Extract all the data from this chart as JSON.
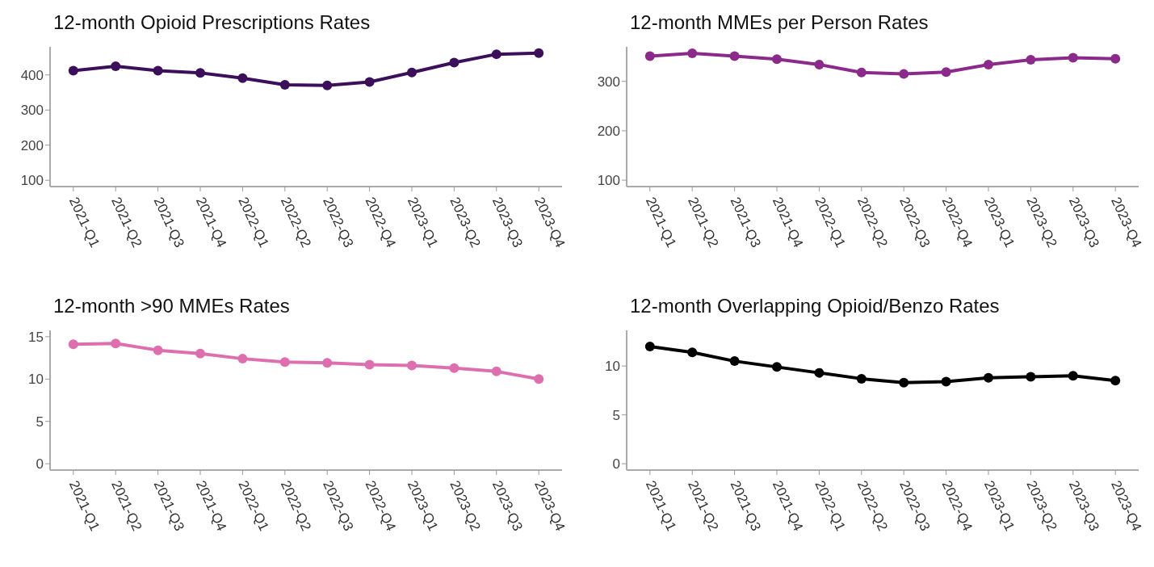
{
  "chart_data": [
    {
      "type": "line",
      "title": "12-month Opioid Prescriptions Rates",
      "categories": [
        "2021-Q1",
        "2021-Q2",
        "2021-Q3",
        "2021-Q4",
        "2022-Q1",
        "2022-Q2",
        "2022-Q3",
        "2022-Q4",
        "2023-Q1",
        "2023-Q2",
        "2023-Q3",
        "2023-Q4"
      ],
      "values": [
        412,
        425,
        412,
        406,
        391,
        372,
        370,
        380,
        407,
        435,
        459,
        462
      ],
      "color": "#3b0f5a",
      "ylim": [
        82,
        480
      ],
      "yticks": [
        100,
        200,
        300,
        400
      ],
      "marker": "circle",
      "grid": false
    },
    {
      "type": "line",
      "title": "12-month MMEs per Person Rates",
      "categories": [
        "2021-Q1",
        "2021-Q2",
        "2021-Q3",
        "2021-Q4",
        "2022-Q1",
        "2022-Q2",
        "2022-Q3",
        "2022-Q4",
        "2023-Q1",
        "2023-Q2",
        "2023-Q3",
        "2023-Q4"
      ],
      "values": [
        351,
        357,
        351,
        345,
        334,
        318,
        315,
        319,
        334,
        344,
        348,
        346
      ],
      "color": "#8c2a8c",
      "ylim": [
        87,
        370
      ],
      "yticks": [
        100,
        200,
        300
      ],
      "marker": "circle",
      "grid": false
    },
    {
      "type": "line",
      "title": "12-month >90 MMEs Rates",
      "categories": [
        "2021-Q1",
        "2021-Q2",
        "2021-Q3",
        "2021-Q4",
        "2022-Q1",
        "2022-Q2",
        "2022-Q3",
        "2022-Q4",
        "2023-Q1",
        "2023-Q2",
        "2023-Q3",
        "2023-Q4"
      ],
      "values": [
        14.1,
        14.2,
        13.4,
        13.0,
        12.4,
        12.0,
        11.9,
        11.7,
        11.6,
        11.3,
        10.9,
        10.0
      ],
      "color": "#de6fae",
      "ylim": [
        -0.75,
        15.75
      ],
      "yticks": [
        0,
        5,
        10,
        15
      ],
      "marker": "circle",
      "grid": false
    },
    {
      "type": "line",
      "title": "12-month Overlapping Opioid/Benzo Rates",
      "categories": [
        "2021-Q1",
        "2021-Q2",
        "2021-Q3",
        "2021-Q4",
        "2022-Q1",
        "2022-Q2",
        "2022-Q3",
        "2022-Q4",
        "2023-Q1",
        "2023-Q2",
        "2023-Q3",
        "2023-Q4"
      ],
      "values": [
        12.0,
        11.4,
        10.5,
        9.9,
        9.3,
        8.7,
        8.3,
        8.4,
        8.8,
        8.9,
        9.0,
        8.5
      ],
      "color": "#000000",
      "ylim": [
        -0.65,
        13.65
      ],
      "yticks": [
        0,
        5,
        10
      ],
      "marker": "circle",
      "grid": false
    }
  ]
}
